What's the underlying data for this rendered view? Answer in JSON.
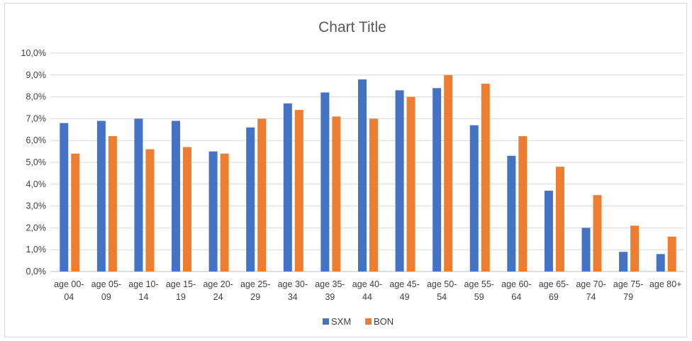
{
  "chart_data": {
    "type": "bar",
    "title": "Chart Title",
    "xlabel": "",
    "ylabel": "",
    "ylim": [
      0,
      10
    ],
    "y_ticks": [
      "0,0%",
      "1,0%",
      "2,0%",
      "3,0%",
      "4,0%",
      "5,0%",
      "6,0%",
      "7,0%",
      "8,0%",
      "9,0%",
      "10,0%"
    ],
    "grid": true,
    "legend_position": "bottom",
    "categories": [
      [
        "age 00-",
        "04"
      ],
      [
        "age 05-",
        "09"
      ],
      [
        "age 10-",
        "14"
      ],
      [
        "age 15-",
        "19"
      ],
      [
        "age 20-",
        "24"
      ],
      [
        "age 25-",
        "29"
      ],
      [
        "age 30-",
        "34"
      ],
      [
        "age 35-",
        "39"
      ],
      [
        "age 40-",
        "44"
      ],
      [
        "age 45-",
        "49"
      ],
      [
        "age 50-",
        "54"
      ],
      [
        "age 55-",
        "59"
      ],
      [
        "age 60-",
        "64"
      ],
      [
        "age 65-",
        "69"
      ],
      [
        "age 70-",
        "74"
      ],
      [
        "age 75-",
        "79"
      ],
      [
        "age 80+"
      ]
    ],
    "series": [
      {
        "name": "SXM",
        "color": "#4472C4",
        "values": [
          6.8,
          6.9,
          7.0,
          6.9,
          5.5,
          6.6,
          7.7,
          8.2,
          8.8,
          8.3,
          8.4,
          6.7,
          5.3,
          3.7,
          2.0,
          0.9,
          0.8
        ]
      },
      {
        "name": "BON",
        "color": "#ED7D31",
        "values": [
          5.4,
          6.2,
          5.6,
          5.7,
          5.4,
          7.0,
          7.4,
          7.1,
          7.0,
          8.0,
          9.0,
          8.6,
          6.2,
          4.8,
          3.5,
          2.1,
          1.6
        ]
      }
    ]
  }
}
